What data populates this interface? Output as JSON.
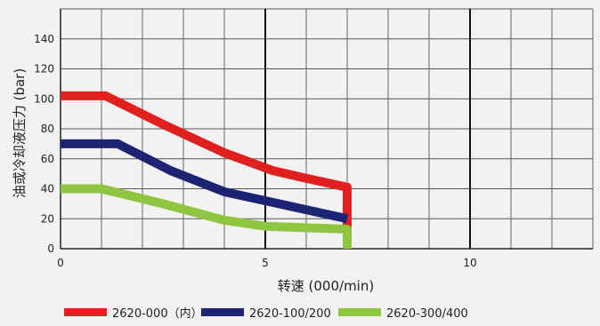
{
  "chart_data": {
    "type": "line",
    "title": "",
    "xlabel": "转速 (000/min)",
    "ylabel": "油或冷却液压力 (bar)",
    "xlim": [
      0,
      13
    ],
    "ylim": [
      0,
      160
    ],
    "x_ticks": [
      0,
      5,
      10
    ],
    "y_ticks": [
      0,
      20,
      40,
      60,
      80,
      100,
      120,
      140
    ],
    "grid": true,
    "legend_position": "bottom",
    "series": [
      {
        "name": "2620-000（内）",
        "color": "#e01f1f",
        "points": [
          [
            0,
            102
          ],
          [
            1.1,
            102
          ],
          [
            2.5,
            83
          ],
          [
            4,
            64
          ],
          [
            5.2,
            52
          ],
          [
            6,
            47
          ],
          [
            7,
            41
          ],
          [
            7,
            0
          ]
        ]
      },
      {
        "name": "2620-100/200",
        "color": "#1c2373",
        "points": [
          [
            0,
            70
          ],
          [
            1.4,
            70
          ],
          [
            2.7,
            52
          ],
          [
            4,
            38
          ],
          [
            5,
            32
          ],
          [
            6,
            26
          ],
          [
            7,
            20
          ]
        ]
      },
      {
        "name": "2620-300/400",
        "color": "#8ec63f",
        "points": [
          [
            0,
            40
          ],
          [
            1,
            40
          ],
          [
            2.5,
            30
          ],
          [
            4,
            19
          ],
          [
            5,
            15
          ],
          [
            6,
            14
          ],
          [
            7,
            13
          ],
          [
            7,
            0
          ]
        ]
      }
    ]
  }
}
